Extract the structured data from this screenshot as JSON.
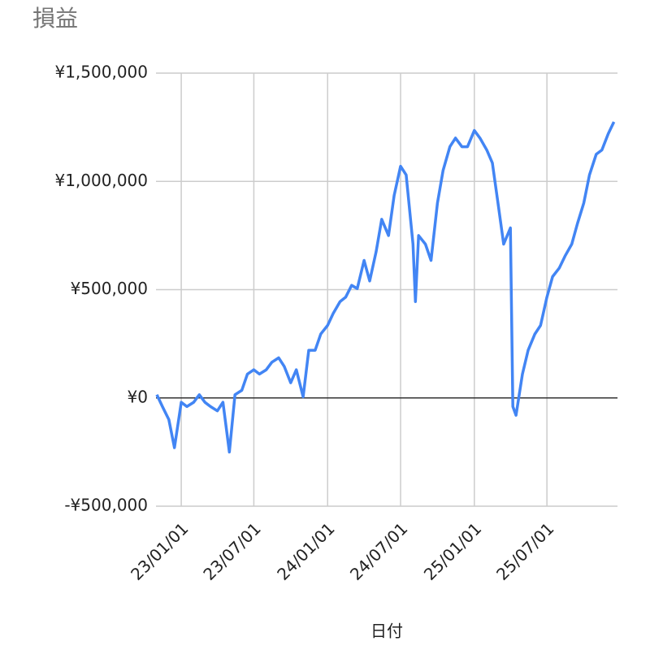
{
  "chart_data": {
    "type": "line",
    "title": "損益",
    "x_label": "日付",
    "x": [
      "22/11/01",
      "22/11/15",
      "22/12/01",
      "22/12/15",
      "23/01/01",
      "23/01/15",
      "23/02/01",
      "23/02/15",
      "23/03/01",
      "23/03/15",
      "23/04/01",
      "23/04/15",
      "23/05/01",
      "23/05/15",
      "23/06/01",
      "23/06/15",
      "23/07/01",
      "23/07/15",
      "23/08/01",
      "23/08/15",
      "23/09/01",
      "23/09/15",
      "23/10/01",
      "23/10/15",
      "23/11/01",
      "23/11/15",
      "23/12/01",
      "23/12/15",
      "24/01/01",
      "24/01/15",
      "24/02/01",
      "24/02/15",
      "24/03/01",
      "24/03/15",
      "24/04/01",
      "24/04/15",
      "24/05/01",
      "24/05/15",
      "24/06/01",
      "24/06/15",
      "24/07/01",
      "24/07/15",
      "24/08/01",
      "24/08/07",
      "24/08/15",
      "24/09/01",
      "24/09/15",
      "24/10/01",
      "24/10/15",
      "24/11/01",
      "24/11/15",
      "24/12/01",
      "24/12/15",
      "25/01/01",
      "25/01/15",
      "25/02/01",
      "25/02/15",
      "25/03/01",
      "25/03/15",
      "25/04/01",
      "25/04/07",
      "25/04/15",
      "25/05/01",
      "25/05/15",
      "25/06/01",
      "25/06/15",
      "25/07/01",
      "25/07/15",
      "25/08/01",
      "25/08/15",
      "25/09/01",
      "25/09/15",
      "25/10/01",
      "25/10/15",
      "25/11/01",
      "25/11/15",
      "25/12/01",
      "25/12/15"
    ],
    "series": [
      {
        "name": "損益",
        "color": "#4285f4",
        "values": [
          15000,
          -40000,
          -100000,
          -230000,
          -20000,
          -40000,
          -20000,
          15000,
          -20000,
          -40000,
          -60000,
          -20000,
          -250000,
          15000,
          35000,
          110000,
          130000,
          110000,
          130000,
          165000,
          185000,
          145000,
          70000,
          130000,
          5000,
          220000,
          220000,
          295000,
          335000,
          390000,
          445000,
          465000,
          520000,
          505000,
          635000,
          540000,
          675000,
          825000,
          750000,
          935000,
          1070000,
          1030000,
          710000,
          445000,
          750000,
          710000,
          635000,
          900000,
          1050000,
          1160000,
          1200000,
          1160000,
          1160000,
          1235000,
          1200000,
          1145000,
          1085000,
          900000,
          710000,
          785000,
          -40000,
          -80000,
          110000,
          220000,
          295000,
          335000,
          465000,
          560000,
          600000,
          655000,
          710000,
          805000,
          900000,
          1030000,
          1125000,
          1145000,
          1220000,
          1275000
        ]
      }
    ],
    "xlim": [
      "22/10/30",
      "25/12/24"
    ],
    "xticks": [
      "23/01/01",
      "23/07/01",
      "24/01/01",
      "24/07/01",
      "25/01/01",
      "25/07/01"
    ],
    "ylim": [
      -500000,
      1500000
    ],
    "yticks": [
      {
        "value": -500000,
        "label": "-¥500,000"
      },
      {
        "value": 0,
        "label": "¥0"
      },
      {
        "value": 500000,
        "label": "¥500,000"
      },
      {
        "value": 1000000,
        "label": "¥1,000,000"
      },
      {
        "value": 1500000,
        "label": "¥1,500,000"
      }
    ],
    "grid": true
  }
}
